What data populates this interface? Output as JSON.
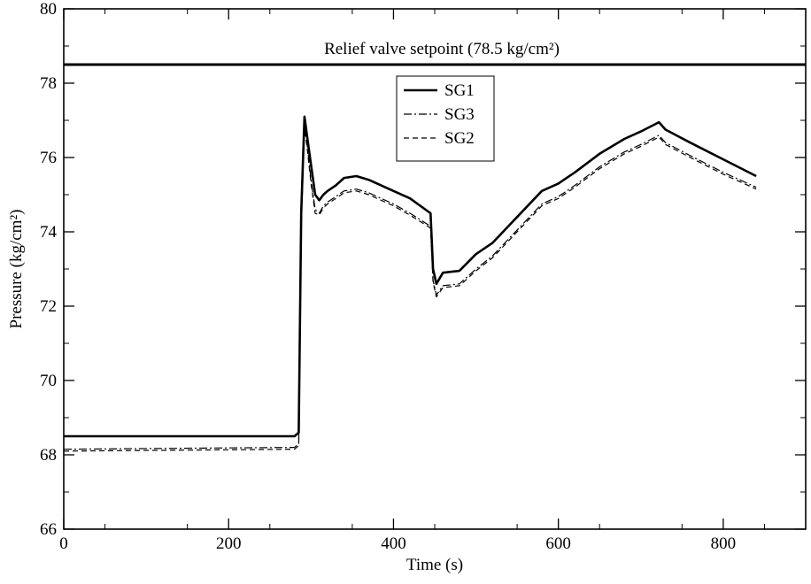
{
  "chart_data": {
    "type": "line",
    "xlabel": "Time (s)",
    "ylabel": "Pressure (kg/cm²)",
    "xlim": [
      0,
      900
    ],
    "ylim": [
      66,
      80
    ],
    "xticks": [
      0,
      200,
      400,
      600,
      800
    ],
    "yticks": [
      66,
      68,
      70,
      72,
      74,
      76,
      78,
      80
    ],
    "grid": false,
    "legend": "top-center",
    "reference_line": {
      "y": 78.5,
      "label": "Relief valve setpoint (78.5 kg/cm²)"
    },
    "series": [
      {
        "name": "SG1",
        "style": "solid",
        "x": [
          0,
          280,
          285,
          288,
          292,
          295,
          300,
          305,
          310,
          315,
          320,
          330,
          340,
          355,
          370,
          400,
          420,
          445,
          448,
          452,
          460,
          480,
          500,
          520,
          550,
          580,
          600,
          620,
          650,
          680,
          700,
          722,
          730,
          760,
          800,
          840
        ],
        "y": [
          68.5,
          68.5,
          68.6,
          74.5,
          77.1,
          76.6,
          75.8,
          75.0,
          74.85,
          75.0,
          75.1,
          75.25,
          75.45,
          75.5,
          75.4,
          75.1,
          74.9,
          74.5,
          73.0,
          72.6,
          72.9,
          72.95,
          73.4,
          73.7,
          74.4,
          75.1,
          75.3,
          75.6,
          76.1,
          76.5,
          76.7,
          76.95,
          76.75,
          76.4,
          75.95,
          75.5
        ]
      },
      {
        "name": "SG3",
        "style": "dashdot",
        "x": [
          0,
          280,
          285,
          288,
          292,
          295,
          300,
          305,
          310,
          315,
          320,
          330,
          340,
          355,
          370,
          400,
          420,
          445,
          448,
          452,
          460,
          480,
          500,
          520,
          550,
          580,
          600,
          620,
          650,
          680,
          700,
          722,
          730,
          760,
          800,
          840
        ],
        "y": [
          68.15,
          68.2,
          68.3,
          74.2,
          76.9,
          76.4,
          75.4,
          74.6,
          74.5,
          74.7,
          74.8,
          74.95,
          75.1,
          75.15,
          75.05,
          74.75,
          74.5,
          74.15,
          72.7,
          72.3,
          72.55,
          72.6,
          73.0,
          73.35,
          74.05,
          74.75,
          74.95,
          75.25,
          75.75,
          76.15,
          76.35,
          76.6,
          76.4,
          76.05,
          75.6,
          75.2
        ]
      },
      {
        "name": "SG2",
        "style": "dashed",
        "x": [
          0,
          280,
          285,
          288,
          292,
          295,
          300,
          305,
          310,
          315,
          320,
          330,
          340,
          355,
          370,
          400,
          420,
          445,
          448,
          452,
          460,
          480,
          500,
          520,
          550,
          580,
          600,
          620,
          650,
          680,
          700,
          722,
          730,
          760,
          800,
          840
        ],
        "y": [
          68.1,
          68.15,
          68.25,
          74.1,
          76.8,
          76.3,
          75.3,
          74.5,
          74.45,
          74.65,
          74.75,
          74.9,
          75.05,
          75.1,
          75.0,
          74.7,
          74.45,
          74.1,
          72.65,
          72.25,
          72.5,
          72.55,
          72.95,
          73.3,
          74.0,
          74.7,
          74.9,
          75.2,
          75.7,
          76.1,
          76.3,
          76.55,
          76.35,
          76.0,
          75.55,
          75.15
        ]
      }
    ]
  }
}
